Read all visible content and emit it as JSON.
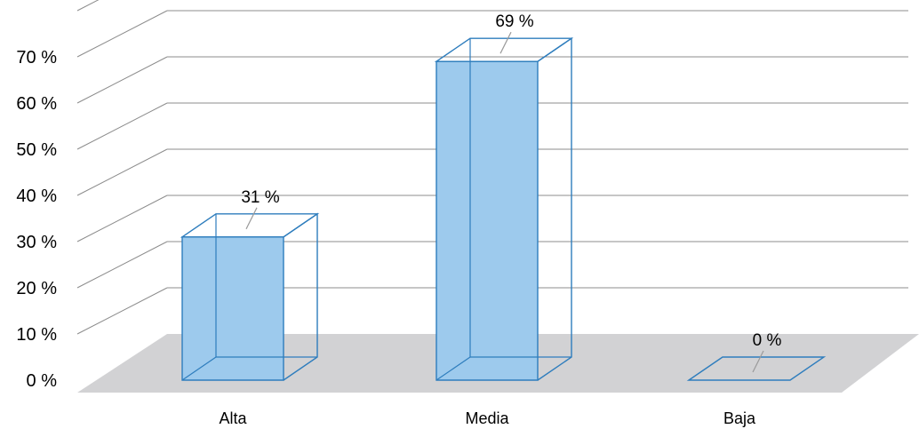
{
  "chart_data": {
    "type": "bar",
    "categories": [
      "Alta",
      "Media",
      "Baja"
    ],
    "values": [
      31,
      69,
      0
    ],
    "data_labels": [
      "31 %",
      "69 %",
      "0 %"
    ],
    "y_ticks": [
      0,
      10,
      20,
      30,
      40,
      50,
      60,
      70
    ],
    "y_tick_labels": [
      "0 %",
      "10 %",
      "20 %",
      "30 %",
      "40 %",
      "50 %",
      "60 %",
      "70 %"
    ],
    "ylim": [
      0,
      80
    ],
    "title": "",
    "xlabel": "",
    "ylabel": "",
    "grid": true,
    "legend": false,
    "style": "3d-column",
    "colors": {
      "bar_fill": "#9dcaed",
      "bar_stroke": "#2e7dbd",
      "floor": "#d2d2d4",
      "grid": "#8c8c8c",
      "leader": "#9a9a9a"
    }
  }
}
